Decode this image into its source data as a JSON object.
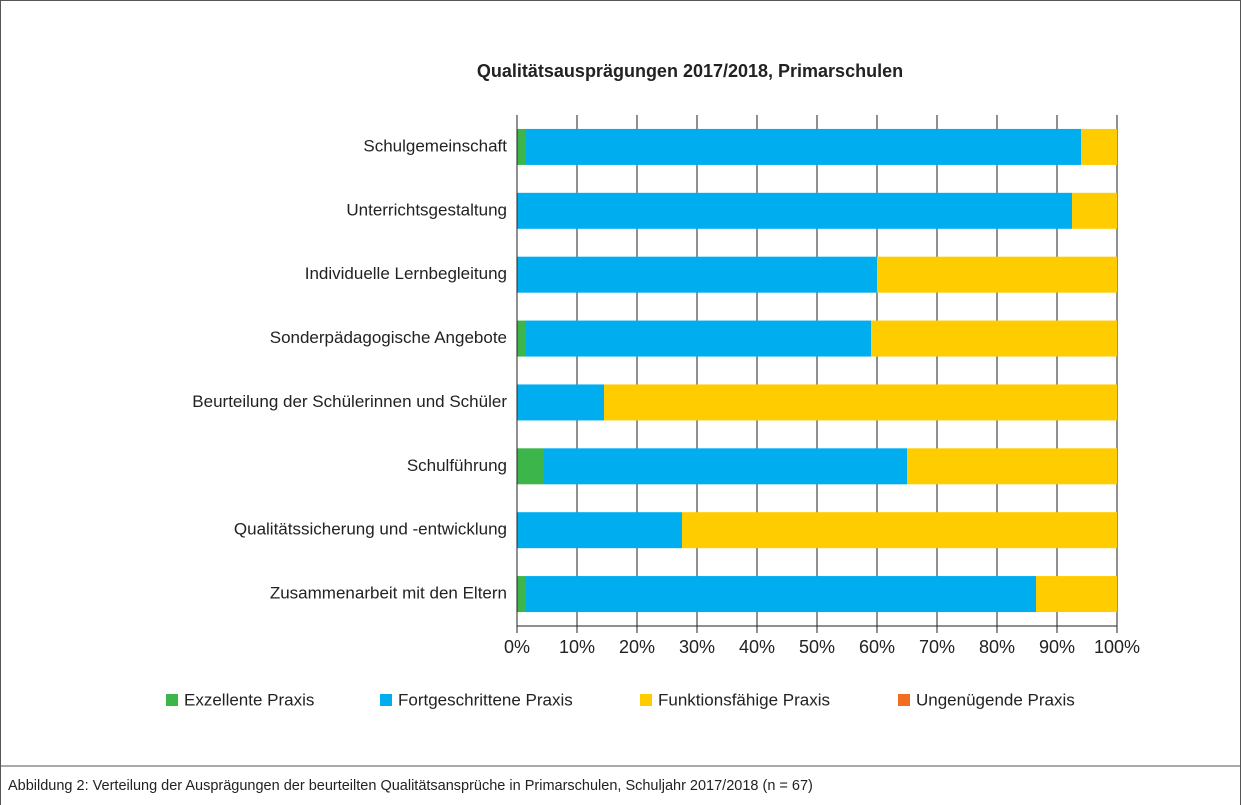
{
  "chart_data": {
    "type": "stacked-bar-horizontal",
    "title": "Qualitätsausprägungen 2017/2018, Primarschulen",
    "caption": "Abbildung 2: Verteilung der Ausprägungen der beurteilten Qualitätsansprüche in Primarschulen, Schuljahr 2017/2018 (n = 67)",
    "categories": [
      "Schulgemeinschaft",
      "Unterrichtsgestaltung",
      "Individuelle Lernbegleitung",
      "Sonderpädagogische Angebote",
      "Beurteilung der Schülerinnen und Schüler",
      "Schulführung",
      "Qualitätssicherung und -entwicklung",
      "Zusammenarbeit mit den Eltern"
    ],
    "series": [
      {
        "name": "Exzellente Praxis",
        "color": "#3cb54a",
        "values": [
          1.5,
          0,
          0,
          1.5,
          0,
          4.5,
          0,
          1.5
        ]
      },
      {
        "name": "Fortgeschrittene Praxis",
        "color": "#00aeef",
        "values": [
          92.5,
          92.5,
          60,
          57.5,
          14.5,
          60.5,
          27.5,
          85
        ]
      },
      {
        "name": "Funktionsfähige Praxis",
        "color": "#ffcc00",
        "values": [
          6,
          7.5,
          40,
          41,
          85.5,
          35,
          72.5,
          13.5
        ]
      },
      {
        "name": "Ungenügende Praxis",
        "color": "#f26f21",
        "values": [
          0,
          0,
          0,
          0,
          0,
          0,
          0,
          0
        ]
      }
    ],
    "xlim": [
      0,
      100
    ],
    "xticks": [
      {
        "value": 0,
        "label": "0%"
      },
      {
        "value": 10,
        "label": "10%"
      },
      {
        "value": 20,
        "label": "20%"
      },
      {
        "value": 30,
        "label": "30%"
      },
      {
        "value": 40,
        "label": "40%"
      },
      {
        "value": 50,
        "label": "50%"
      },
      {
        "value": 60,
        "label": "60%"
      },
      {
        "value": 70,
        "label": "70%"
      },
      {
        "value": 80,
        "label": "80%"
      },
      {
        "value": 90,
        "label": "90%"
      },
      {
        "value": 100,
        "label": "100%"
      }
    ],
    "grid": true,
    "legend": "bottom"
  }
}
